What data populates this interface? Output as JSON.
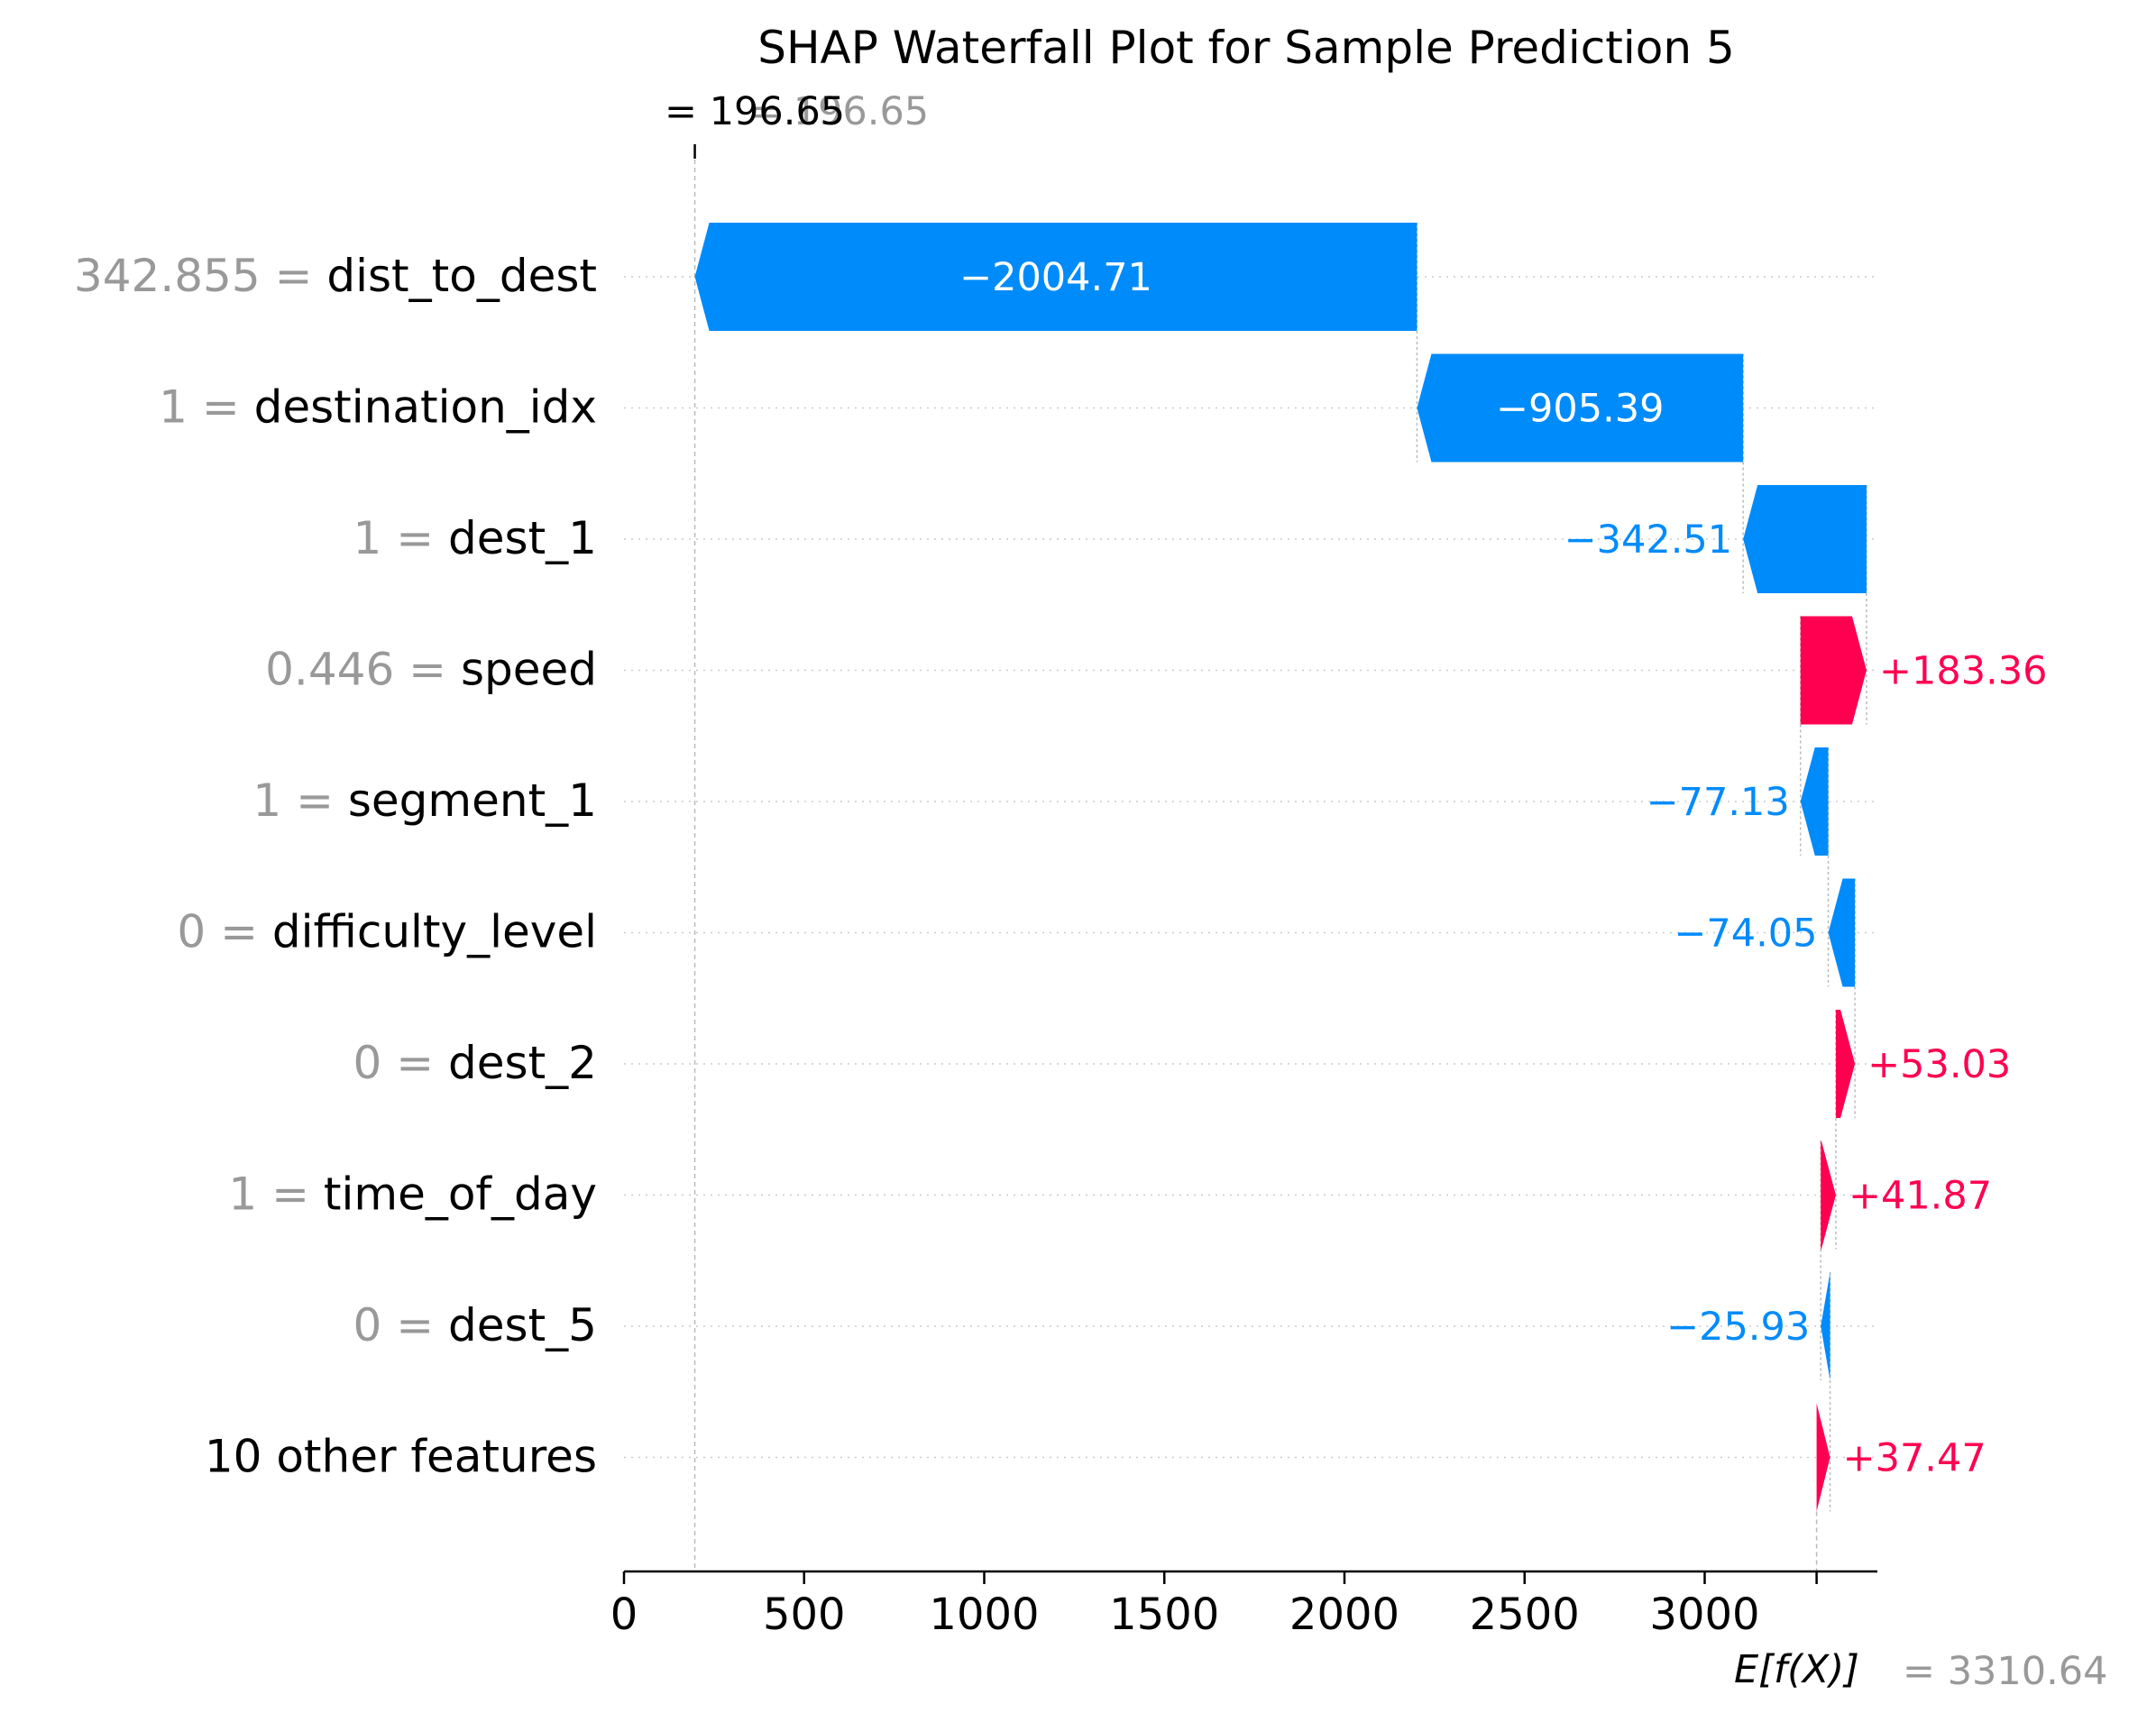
{
  "chart_data": {
    "type": "waterfall",
    "title": "SHAP Waterfall Plot for Sample Prediction 5",
    "base_value": 3310.64,
    "base_label": "E[f(X)]",
    "base_value_label": "= 3310.64",
    "output_value": 196.65,
    "output_label_a": "= 196.65",
    "output_label_b": "= 196.65",
    "xlim": [
      0,
      3480
    ],
    "xticks": [
      0,
      500,
      1000,
      1500,
      2000,
      2500,
      3000
    ],
    "features": [
      {
        "value_text": "342.855 =",
        "name": "dist_to_dest",
        "shap": -2004.71,
        "label": "−2004.71"
      },
      {
        "value_text": "1 =",
        "name": "destination_idx",
        "shap": -905.39,
        "label": "−905.39"
      },
      {
        "value_text": "1 =",
        "name": "dest_1",
        "shap": -342.51,
        "label": "−342.51"
      },
      {
        "value_text": "0.446 =",
        "name": "speed",
        "shap": 183.36,
        "label": "+183.36"
      },
      {
        "value_text": "1 =",
        "name": "segment_1",
        "shap": -77.13,
        "label": "−77.13"
      },
      {
        "value_text": "0 =",
        "name": "difficulty_level",
        "shap": -74.05,
        "label": "−74.05"
      },
      {
        "value_text": "0 =",
        "name": "dest_2",
        "shap": 53.03,
        "label": "+53.03"
      },
      {
        "value_text": "1 =",
        "name": "time_of_day",
        "shap": 41.87,
        "label": "+41.87"
      },
      {
        "value_text": "0 =",
        "name": "dest_5",
        "shap": -25.93,
        "label": "−25.93"
      },
      {
        "value_text": "",
        "name": "10 other features",
        "shap": 37.47,
        "label": "+37.47"
      }
    ],
    "colors": {
      "positive": "#ff0051",
      "negative": "#008bfb",
      "muted": "#999999",
      "text": "#000000"
    }
  }
}
